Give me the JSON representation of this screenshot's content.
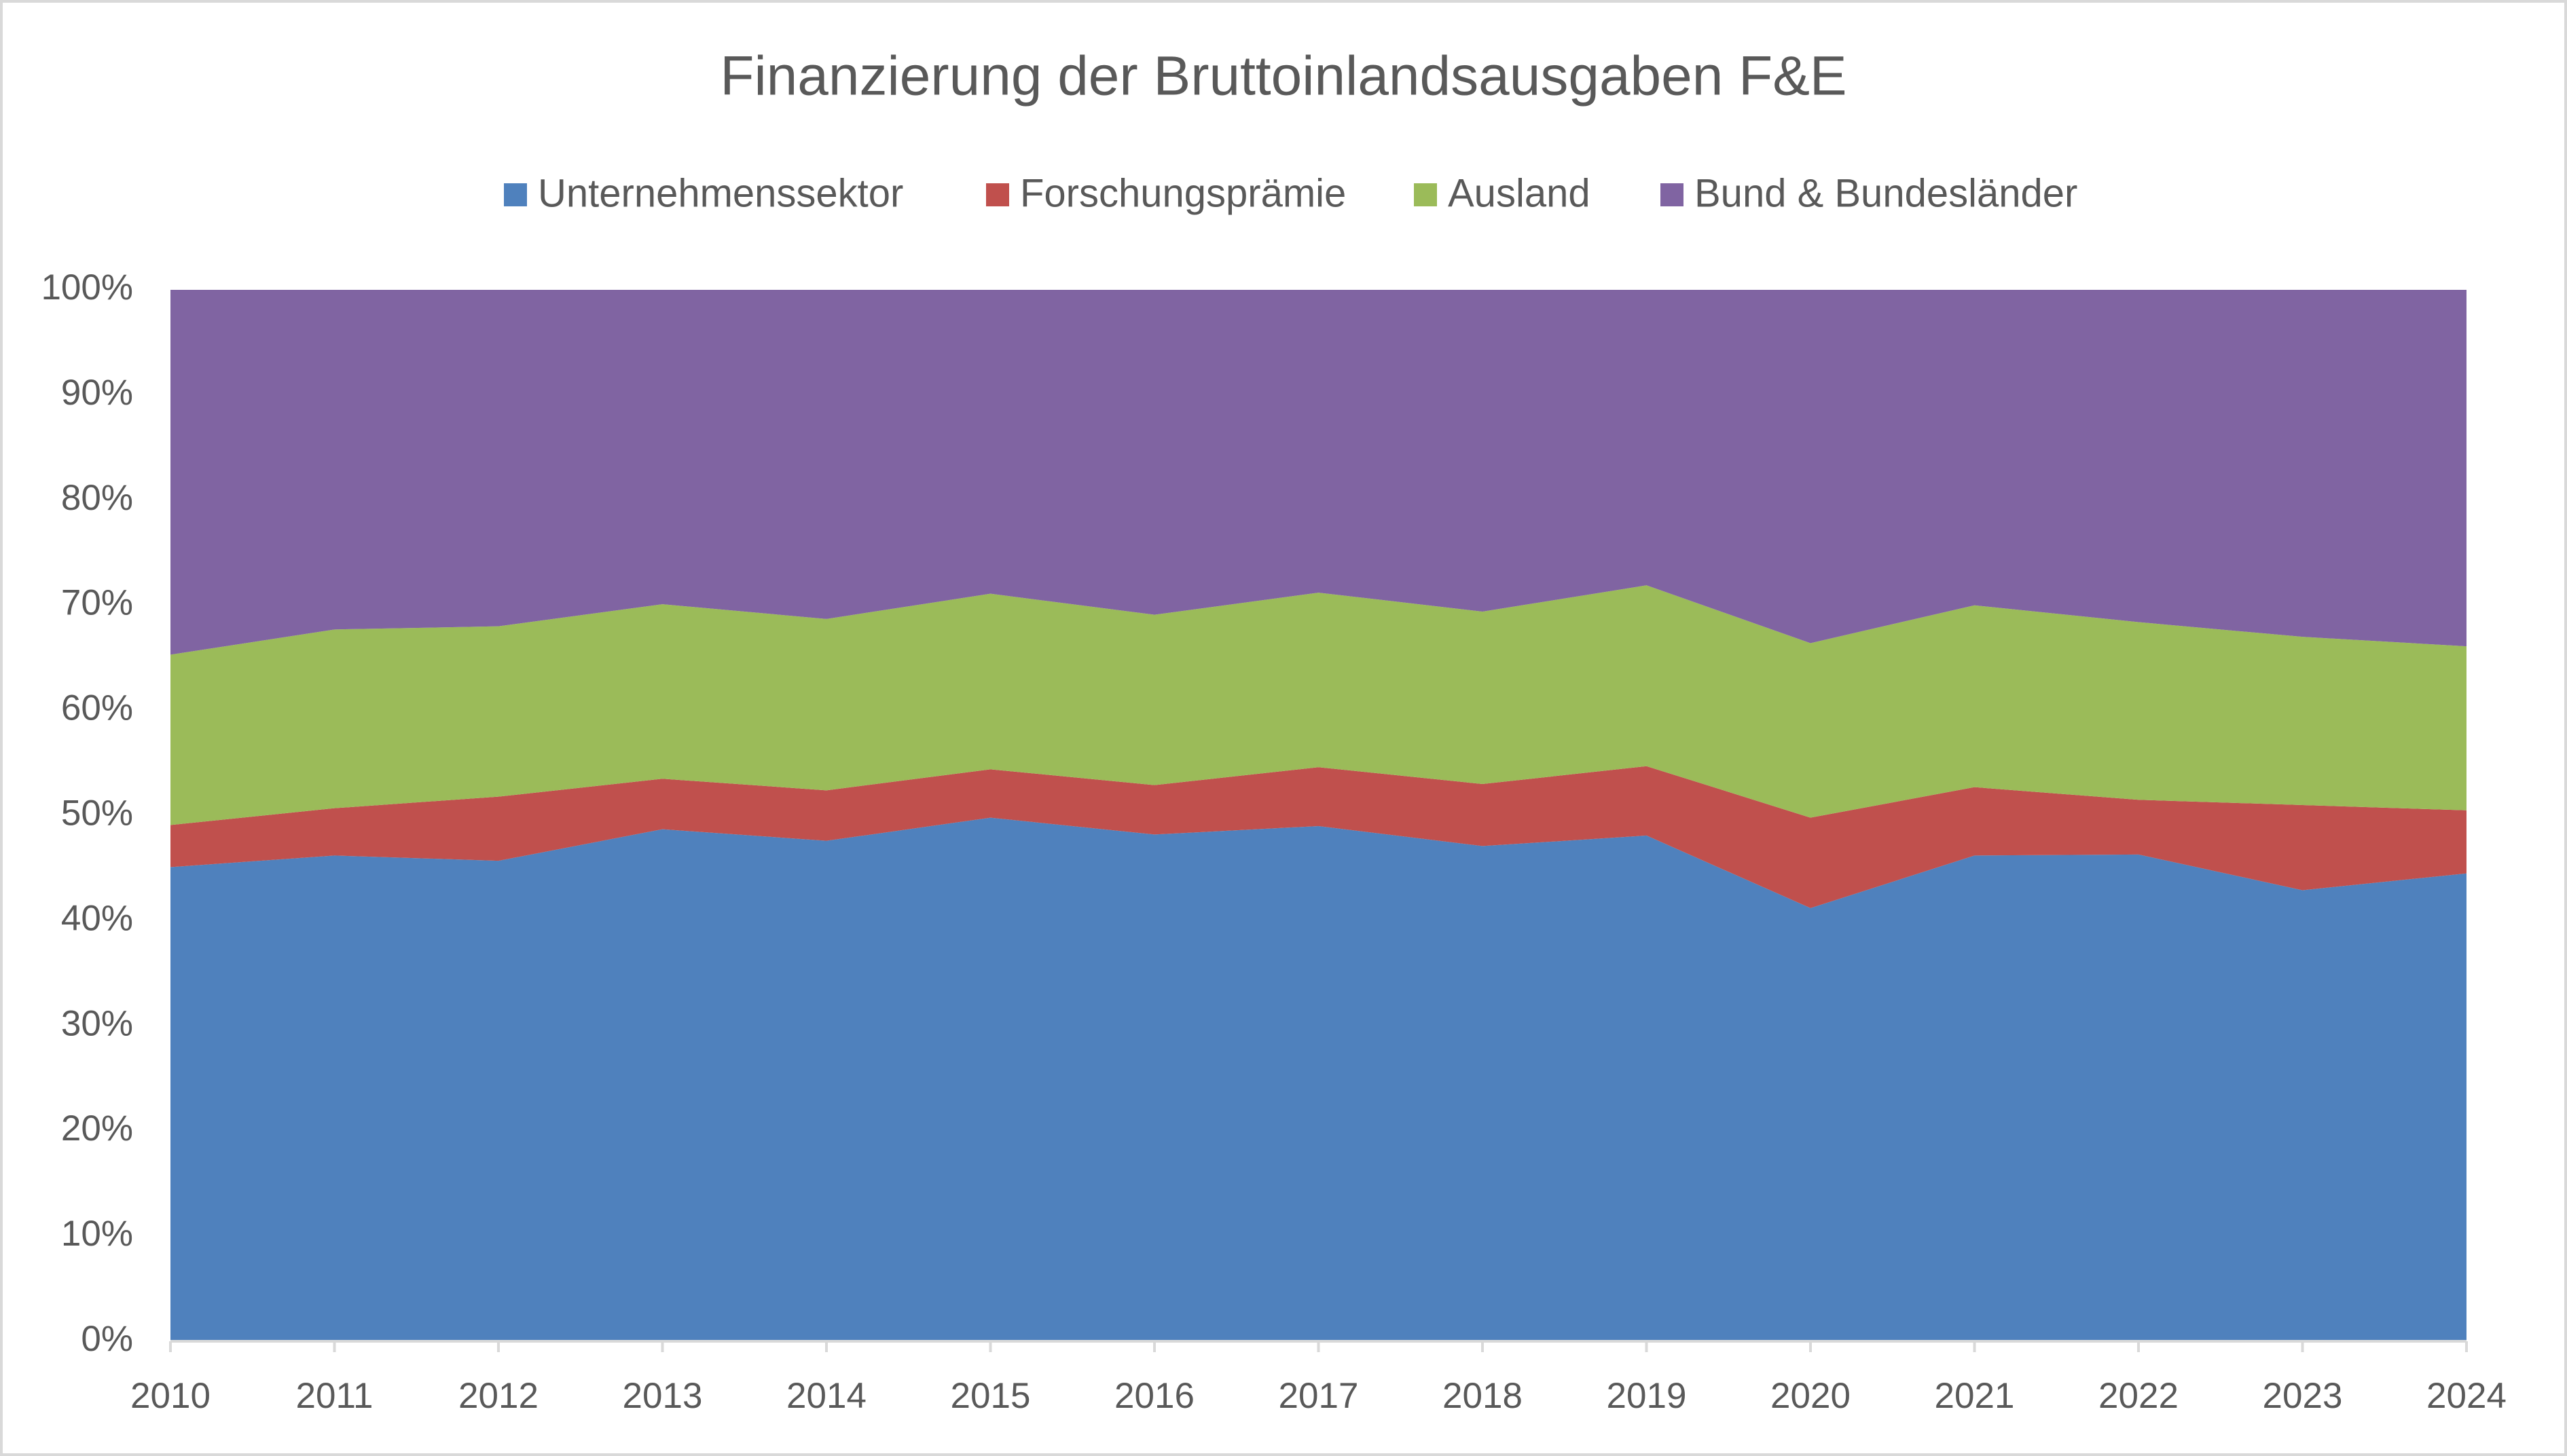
{
  "chart_data": {
    "type": "stacked_area",
    "title": "Finanzierung der Bruttoinlandsausgaben F&E",
    "categories": [
      "2010",
      "2011",
      "2012",
      "2013",
      "2014",
      "2015",
      "2016",
      "2017",
      "2018",
      "2019",
      "2020",
      "2021",
      "2022",
      "2023",
      "2024"
    ],
    "series": [
      {
        "name": "Unternehmenssektor",
        "color": "#4f81bd",
        "values": [
          45.1,
          46.2,
          45.7,
          48.7,
          47.6,
          49.8,
          48.2,
          49.0,
          47.1,
          48.1,
          41.2,
          46.2,
          46.3,
          42.9,
          44.5
        ]
      },
      {
        "name": "Forschungsprämie",
        "color": "#c0504d",
        "values": [
          4.0,
          4.5,
          6.1,
          4.8,
          4.8,
          4.6,
          4.7,
          5.6,
          5.9,
          6.6,
          8.6,
          6.5,
          5.2,
          8.1,
          6.0
        ]
      },
      {
        "name": "Ausland",
        "color": "#9bbb59",
        "values": [
          16.2,
          17.0,
          16.2,
          16.6,
          16.3,
          16.7,
          16.2,
          16.6,
          16.4,
          17.2,
          16.6,
          17.3,
          16.9,
          16.0,
          15.6
        ]
      },
      {
        "name": "Bund & Bundesländer",
        "color": "#8064a2",
        "values": [
          34.7,
          32.3,
          32.0,
          29.9,
          31.3,
          28.9,
          30.9,
          28.8,
          30.6,
          28.1,
          33.6,
          30.0,
          31.6,
          33.0,
          33.9
        ]
      }
    ],
    "ylim": [
      0,
      100
    ],
    "yticks": [
      {
        "value": 0,
        "label": "0%"
      },
      {
        "value": 10,
        "label": "10%"
      },
      {
        "value": 20,
        "label": "20%"
      },
      {
        "value": 30,
        "label": "30%"
      },
      {
        "value": 40,
        "label": "40%"
      },
      {
        "value": 50,
        "label": "50%"
      },
      {
        "value": 60,
        "label": "60%"
      },
      {
        "value": 70,
        "label": "70%"
      },
      {
        "value": 80,
        "label": "80%"
      },
      {
        "value": 90,
        "label": "90%"
      },
      {
        "value": 100,
        "label": "100%"
      }
    ],
    "legend": "top",
    "grid": false
  }
}
